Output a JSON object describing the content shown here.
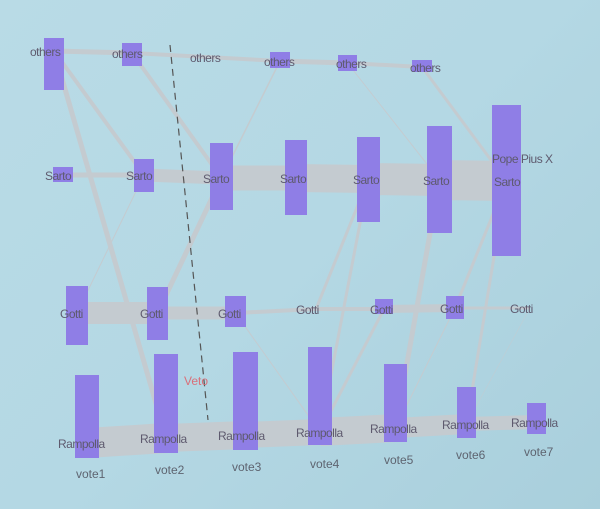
{
  "diagram": {
    "type": "sankey",
    "columns": [
      "vote1",
      "vote2",
      "vote3",
      "vote4",
      "vote5",
      "vote6",
      "vote7"
    ],
    "rows": [
      "others",
      "Sarto",
      "Gotti",
      "Rampolla"
    ],
    "winner_label": "Pope Pius X",
    "annotation": "Veto",
    "colors": {
      "node": "#8f7ee6",
      "link": "#c4cbd0",
      "veto": "#d9707a",
      "background": "#b6d9e5"
    },
    "nodes": [
      {
        "row": "others",
        "labels": [
          "others",
          "others",
          "others",
          "others",
          "others",
          "others"
        ]
      },
      {
        "row": "Sarto",
        "labels": [
          "Sarto",
          "Sarto",
          "Sarto",
          "Sarto",
          "Sarto",
          "Sarto",
          "Sarto"
        ]
      },
      {
        "row": "Gotti",
        "labels": [
          "Gotti",
          "Gotti",
          "Gotti",
          "Gotti",
          "Gotti",
          "Gotti",
          "Gotti"
        ]
      },
      {
        "row": "Rampolla",
        "labels": [
          "Rampolla",
          "Rampolla",
          "Rampolla",
          "Rampolla",
          "Rampolla",
          "Rampolla",
          "Rampolla"
        ]
      }
    ]
  }
}
